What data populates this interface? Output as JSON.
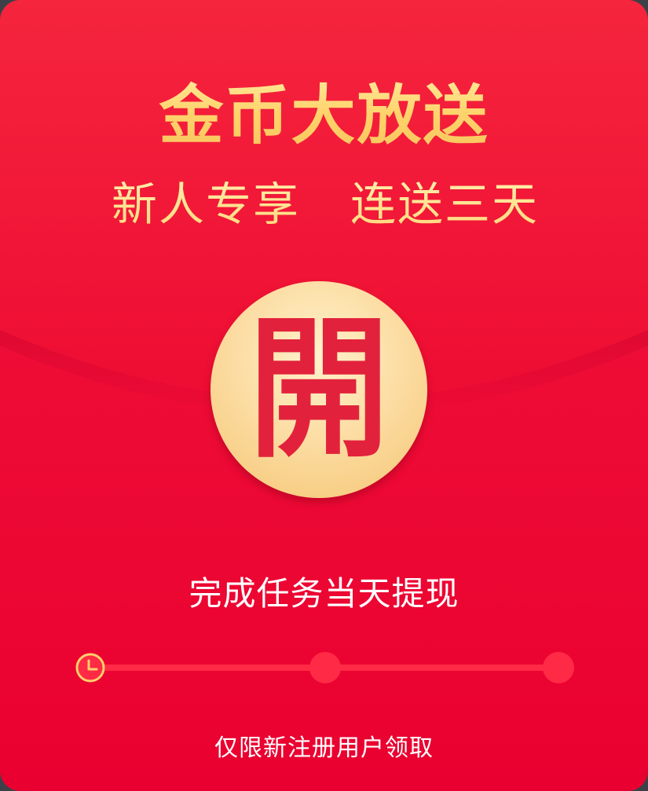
{
  "envelope": {
    "headline": "金币大放送",
    "subline_left": "新人专享",
    "subline_right": "连送三天",
    "open_button_label": "開",
    "task_text": "完成任务当天提现",
    "footnote": "仅限新注册用户领取",
    "progress": {
      "total_steps": 3,
      "current_step": 1,
      "step_icon": "clock-icon"
    }
  },
  "colors": {
    "background": "#ea0030",
    "flap": "#f01236",
    "gold_text": "#ffd87a",
    "button_gold": "#fbd99c",
    "button_glyph": "#e2223c",
    "progress_track": "#ff2a45"
  }
}
